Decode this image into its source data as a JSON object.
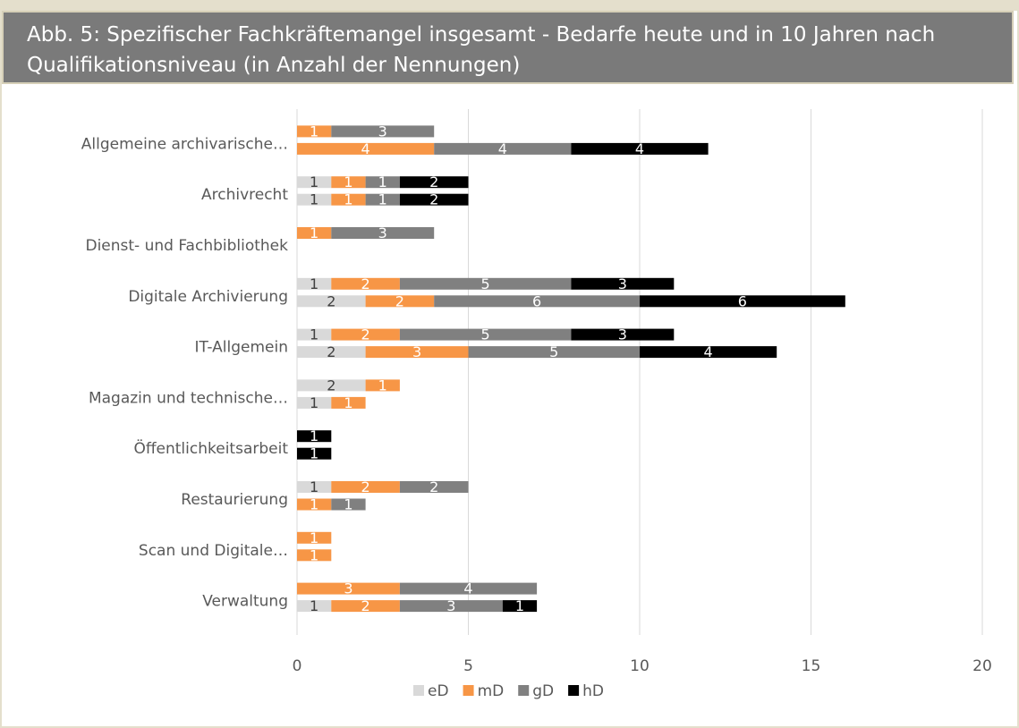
{
  "chart_data": {
    "type": "stacked-barh",
    "title": "Abb. 5: Spezifischer Fachkräftemangel insgesamt - Bedarfe heute und in 10 Jahren nach Qualifikationsniveau (in Anzahl der Nennungen)",
    "categories": [
      "Allgemeine archivarische…",
      "Archivrecht",
      "Dienst- und Fachbibliothek",
      "Digitale Archivierung",
      "IT-Allgemein",
      "Magazin und technische…",
      "Öffentlichkeitsarbeit",
      "Restaurierung",
      "Scan und Digitale…",
      "Verwaltung"
    ],
    "series": [
      {
        "name": "eD",
        "color": "#d9d9d9",
        "label_color": "#404040",
        "values": [
          [
            null,
            null
          ],
          [
            1,
            1
          ],
          [
            null,
            null
          ],
          [
            1,
            2
          ],
          [
            1,
            2
          ],
          [
            2,
            1
          ],
          [
            null,
            null
          ],
          [
            1,
            null
          ],
          [
            null,
            null
          ],
          [
            null,
            1
          ]
        ]
      },
      {
        "name": "mD",
        "color": "#f79646",
        "label_color": "#ffffff",
        "values": [
          [
            1,
            4
          ],
          [
            1,
            1
          ],
          [
            1,
            null
          ],
          [
            2,
            2
          ],
          [
            2,
            3
          ],
          [
            1,
            1
          ],
          [
            null,
            null
          ],
          [
            2,
            1
          ],
          [
            1,
            1
          ],
          [
            3,
            2
          ]
        ]
      },
      {
        "name": "gD",
        "color": "#808080",
        "label_color": "#ffffff",
        "values": [
          [
            3,
            4
          ],
          [
            1,
            1
          ],
          [
            3,
            null
          ],
          [
            5,
            6
          ],
          [
            5,
            5
          ],
          [
            null,
            null
          ],
          [
            null,
            null
          ],
          [
            2,
            1
          ],
          [
            null,
            null
          ],
          [
            4,
            3
          ]
        ]
      },
      {
        "name": "hD",
        "color": "#000000",
        "label_color": "#ffffff",
        "values": [
          [
            null,
            4
          ],
          [
            2,
            2
          ],
          [
            null,
            null
          ],
          [
            3,
            6
          ],
          [
            3,
            4
          ],
          [
            null,
            null
          ],
          [
            1,
            1
          ],
          [
            null,
            null
          ],
          [
            null,
            null
          ],
          [
            null,
            1
          ]
        ]
      }
    ],
    "xlim": [
      0,
      20
    ],
    "xticks": [
      0,
      5,
      10,
      15,
      20
    ],
    "grid": true,
    "legend": "bottom"
  }
}
